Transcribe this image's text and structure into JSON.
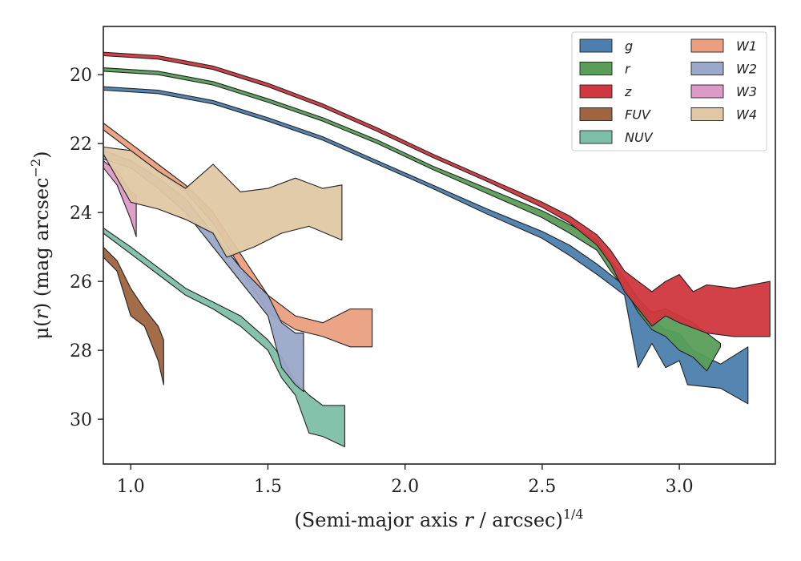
{
  "chart_data": {
    "type": "area",
    "xlabel": {
      "main": "(Semi-major axis ",
      "var": "r",
      "mid": " / arcsec)",
      "sup": "1/4"
    },
    "ylabel": {
      "mu": "μ(",
      "var": "r",
      "mid": ") (mag arcsec",
      "sup": "−2",
      "end": ")"
    },
    "xlim": [
      0.9,
      3.35
    ],
    "ylim": [
      31.3,
      18.6
    ],
    "xticks": [
      1.0,
      1.5,
      2.0,
      2.5,
      3.0
    ],
    "xtick_labels": [
      "1.0",
      "1.5",
      "2.0",
      "2.5",
      "3.0"
    ],
    "yticks": [
      20,
      22,
      24,
      26,
      28,
      30
    ],
    "ytick_labels": [
      "20",
      "22",
      "24",
      "26",
      "28",
      "30"
    ],
    "grid": false,
    "legend_position": "top-right",
    "series": [
      {
        "name": "g",
        "color": "#4c7fae",
        "upper": [
          [
            0.9,
            20.35
          ],
          [
            1.1,
            20.45
          ],
          [
            1.3,
            20.75
          ],
          [
            1.5,
            21.25
          ],
          [
            1.7,
            21.8
          ],
          [
            1.9,
            22.5
          ],
          [
            2.1,
            23.2
          ],
          [
            2.3,
            23.9
          ],
          [
            2.5,
            24.55
          ],
          [
            2.6,
            24.95
          ],
          [
            2.7,
            25.5
          ],
          [
            2.78,
            26.0
          ],
          [
            2.85,
            26.6
          ],
          [
            2.9,
            27.1
          ],
          [
            2.95,
            27.4
          ],
          [
            3.0,
            27.5
          ],
          [
            3.05,
            28.0
          ],
          [
            3.1,
            28.2
          ],
          [
            3.15,
            28.4
          ],
          [
            3.25,
            27.9
          ]
        ],
        "lower": [
          [
            0.9,
            20.45
          ],
          [
            1.1,
            20.55
          ],
          [
            1.3,
            20.85
          ],
          [
            1.5,
            21.35
          ],
          [
            1.7,
            21.9
          ],
          [
            1.9,
            22.6
          ],
          [
            2.1,
            23.3
          ],
          [
            2.3,
            24.05
          ],
          [
            2.5,
            24.75
          ],
          [
            2.6,
            25.25
          ],
          [
            2.7,
            25.8
          ],
          [
            2.8,
            26.4
          ],
          [
            2.85,
            28.5
          ],
          [
            2.9,
            27.8
          ],
          [
            2.95,
            28.5
          ],
          [
            3.0,
            28.3
          ],
          [
            3.03,
            29.0
          ],
          [
            3.15,
            29.1
          ],
          [
            3.25,
            29.55
          ]
        ]
      },
      {
        "name": "r",
        "color": "#5a9e5a",
        "upper": [
          [
            0.9,
            19.8
          ],
          [
            1.1,
            19.9
          ],
          [
            1.3,
            20.2
          ],
          [
            1.5,
            20.7
          ],
          [
            1.7,
            21.25
          ],
          [
            1.9,
            21.9
          ],
          [
            2.1,
            22.65
          ],
          [
            2.3,
            23.3
          ],
          [
            2.5,
            23.95
          ],
          [
            2.6,
            24.35
          ],
          [
            2.7,
            24.8
          ],
          [
            2.75,
            25.4
          ],
          [
            2.8,
            25.9
          ],
          [
            2.85,
            26.5
          ],
          [
            2.9,
            26.9
          ],
          [
            2.95,
            26.8
          ],
          [
            3.0,
            27.0
          ],
          [
            3.05,
            27.2
          ],
          [
            3.1,
            27.5
          ],
          [
            3.15,
            27.8
          ]
        ],
        "lower": [
          [
            0.9,
            19.9
          ],
          [
            1.1,
            20.0
          ],
          [
            1.3,
            20.3
          ],
          [
            1.5,
            20.8
          ],
          [
            1.7,
            21.35
          ],
          [
            1.9,
            22.0
          ],
          [
            2.1,
            22.75
          ],
          [
            2.3,
            23.45
          ],
          [
            2.5,
            24.15
          ],
          [
            2.6,
            24.6
          ],
          [
            2.7,
            25.1
          ],
          [
            2.75,
            25.7
          ],
          [
            2.8,
            26.2
          ],
          [
            2.85,
            26.9
          ],
          [
            2.9,
            27.4
          ],
          [
            2.95,
            27.6
          ],
          [
            3.0,
            28.0
          ],
          [
            3.05,
            28.2
          ],
          [
            3.1,
            28.6
          ],
          [
            3.15,
            27.9
          ]
        ]
      },
      {
        "name": "z",
        "color": "#d0373e",
        "upper": [
          [
            0.9,
            19.35
          ],
          [
            1.1,
            19.45
          ],
          [
            1.3,
            19.75
          ],
          [
            1.5,
            20.25
          ],
          [
            1.7,
            20.85
          ],
          [
            1.9,
            21.55
          ],
          [
            2.1,
            22.3
          ],
          [
            2.3,
            23.0
          ],
          [
            2.5,
            23.7
          ],
          [
            2.6,
            24.1
          ],
          [
            2.7,
            24.65
          ],
          [
            2.75,
            25.1
          ],
          [
            2.8,
            25.7
          ],
          [
            2.85,
            26.0
          ],
          [
            2.9,
            26.3
          ],
          [
            2.95,
            26.0
          ],
          [
            3.0,
            25.8
          ],
          [
            3.05,
            26.3
          ],
          [
            3.1,
            26.1
          ],
          [
            3.2,
            26.2
          ],
          [
            3.33,
            26.0
          ]
        ],
        "lower": [
          [
            0.9,
            19.45
          ],
          [
            1.1,
            19.55
          ],
          [
            1.3,
            19.85
          ],
          [
            1.5,
            20.35
          ],
          [
            1.7,
            20.95
          ],
          [
            1.9,
            21.65
          ],
          [
            2.1,
            22.4
          ],
          [
            2.3,
            23.1
          ],
          [
            2.5,
            23.85
          ],
          [
            2.6,
            24.3
          ],
          [
            2.7,
            24.95
          ],
          [
            2.75,
            25.5
          ],
          [
            2.8,
            26.3
          ],
          [
            2.85,
            26.8
          ],
          [
            2.9,
            27.3
          ],
          [
            2.95,
            27.0
          ],
          [
            3.0,
            27.2
          ],
          [
            3.1,
            27.5
          ],
          [
            3.2,
            27.6
          ],
          [
            3.33,
            27.6
          ]
        ]
      },
      {
        "name": "FUV",
        "color": "#a0643f",
        "upper": [
          [
            0.9,
            25.0
          ],
          [
            0.95,
            25.4
          ],
          [
            1.0,
            26.2
          ],
          [
            1.05,
            26.8
          ],
          [
            1.1,
            27.3
          ],
          [
            1.12,
            27.7
          ]
        ],
        "lower": [
          [
            0.9,
            25.3
          ],
          [
            0.95,
            25.7
          ],
          [
            1.0,
            27.0
          ],
          [
            1.05,
            27.3
          ],
          [
            1.1,
            28.3
          ],
          [
            1.12,
            29.0
          ]
        ]
      },
      {
        "name": "NUV",
        "color": "#7dbfa8",
        "upper": [
          [
            0.9,
            24.45
          ],
          [
            1.0,
            25.0
          ],
          [
            1.1,
            25.6
          ],
          [
            1.2,
            26.2
          ],
          [
            1.3,
            26.6
          ],
          [
            1.4,
            27.0
          ],
          [
            1.5,
            27.7
          ],
          [
            1.55,
            28.2
          ],
          [
            1.6,
            28.9
          ],
          [
            1.65,
            29.3
          ],
          [
            1.7,
            29.6
          ],
          [
            1.78,
            29.6
          ]
        ],
        "lower": [
          [
            0.9,
            24.6
          ],
          [
            1.0,
            25.2
          ],
          [
            1.1,
            25.8
          ],
          [
            1.2,
            26.4
          ],
          [
            1.3,
            26.8
          ],
          [
            1.4,
            27.3
          ],
          [
            1.5,
            28.0
          ],
          [
            1.55,
            28.8
          ],
          [
            1.6,
            29.3
          ],
          [
            1.65,
            30.4
          ],
          [
            1.7,
            30.5
          ],
          [
            1.78,
            30.8
          ]
        ]
      },
      {
        "name": "W1",
        "color": "#eb9f80",
        "upper": [
          [
            0.9,
            21.4
          ],
          [
            1.0,
            22.0
          ],
          [
            1.1,
            22.6
          ],
          [
            1.2,
            23.2
          ],
          [
            1.3,
            24.0
          ],
          [
            1.4,
            25.2
          ],
          [
            1.5,
            26.4
          ],
          [
            1.6,
            27.0
          ],
          [
            1.7,
            27.2
          ],
          [
            1.8,
            26.8
          ],
          [
            1.88,
            26.8
          ]
        ],
        "lower": [
          [
            0.9,
            21.6
          ],
          [
            1.0,
            22.2
          ],
          [
            1.1,
            22.8
          ],
          [
            1.2,
            23.4
          ],
          [
            1.3,
            24.3
          ],
          [
            1.4,
            25.6
          ],
          [
            1.5,
            26.9
          ],
          [
            1.6,
            27.4
          ],
          [
            1.7,
            27.6
          ],
          [
            1.8,
            27.9
          ],
          [
            1.88,
            27.9
          ]
        ]
      },
      {
        "name": "W2",
        "color": "#9ba8c9",
        "upper": [
          [
            0.9,
            22.2
          ],
          [
            1.0,
            22.5
          ],
          [
            1.1,
            23.0
          ],
          [
            1.2,
            23.6
          ],
          [
            1.3,
            24.6
          ],
          [
            1.4,
            25.6
          ],
          [
            1.5,
            26.4
          ],
          [
            1.55,
            27.2
          ],
          [
            1.6,
            27.5
          ],
          [
            1.63,
            27.5
          ]
        ],
        "lower": [
          [
            0.9,
            22.45
          ],
          [
            1.0,
            22.7
          ],
          [
            1.1,
            23.3
          ],
          [
            1.2,
            24.0
          ],
          [
            1.3,
            25.0
          ],
          [
            1.4,
            26.0
          ],
          [
            1.5,
            27.0
          ],
          [
            1.55,
            28.5
          ],
          [
            1.6,
            29.0
          ],
          [
            1.63,
            29.2
          ]
        ]
      },
      {
        "name": "W3",
        "color": "#dc9ac6",
        "upper": [
          [
            0.9,
            22.5
          ],
          [
            0.95,
            22.8
          ],
          [
            1.0,
            23.4
          ],
          [
            1.02,
            23.5
          ]
        ],
        "lower": [
          [
            0.9,
            22.7
          ],
          [
            0.95,
            23.2
          ],
          [
            1.0,
            24.2
          ],
          [
            1.02,
            24.7
          ]
        ]
      },
      {
        "name": "W4",
        "color": "#e0c8a4",
        "upper": [
          [
            0.9,
            22.1
          ],
          [
            1.0,
            22.2
          ],
          [
            1.1,
            22.8
          ],
          [
            1.2,
            23.3
          ],
          [
            1.3,
            22.6
          ],
          [
            1.4,
            23.4
          ],
          [
            1.5,
            23.3
          ],
          [
            1.6,
            23.0
          ],
          [
            1.7,
            23.3
          ],
          [
            1.77,
            23.2
          ]
        ],
        "lower": [
          [
            0.9,
            22.3
          ],
          [
            1.0,
            23.7
          ],
          [
            1.1,
            23.9
          ],
          [
            1.2,
            24.2
          ],
          [
            1.3,
            24.6
          ],
          [
            1.35,
            25.3
          ],
          [
            1.45,
            25.0
          ],
          [
            1.55,
            24.6
          ],
          [
            1.65,
            24.4
          ],
          [
            1.77,
            24.8
          ]
        ]
      }
    ]
  }
}
